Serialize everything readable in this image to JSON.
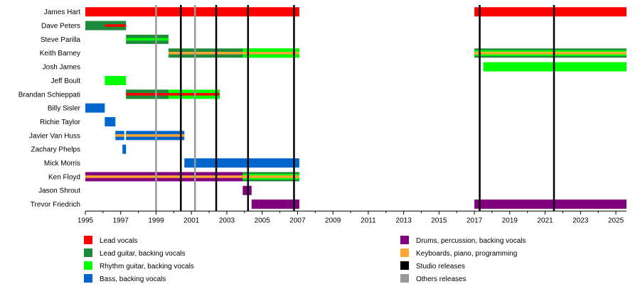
{
  "chart_data": {
    "type": "timeline",
    "xlim": [
      1995,
      2025.6
    ],
    "x_ticks": [
      1995,
      1997,
      1999,
      2001,
      2003,
      2005,
      2007,
      2009,
      2011,
      2013,
      2015,
      2017,
      2019,
      2021,
      2023,
      2025
    ],
    "colors": {
      "lead_vocals": "#ff0000",
      "lead_guitar": "#1e8b3c",
      "rhythm_guitar": "#00ff00",
      "bass": "#0066cc",
      "drums": "#800080",
      "keyboards": "#ffa533",
      "studio": "#000000",
      "others": "#999999"
    },
    "members": [
      {
        "name": "James Hart",
        "bars": [
          {
            "start": 1995.0,
            "end": 2007.1,
            "role": "lead_vocals"
          },
          {
            "start": 2017.0,
            "end": 2025.6,
            "role": "lead_vocals"
          }
        ]
      },
      {
        "name": "Dave Peters",
        "bars": [
          {
            "start": 1995.0,
            "end": 1997.3,
            "role": "lead_guitar",
            "inner": "rhythm_guitar",
            "inner_end": 1996.1
          },
          {
            "start": 1995.0,
            "end": 1997.3,
            "role": "lead_guitar",
            "inner": "lead_vocals",
            "inner_start": 1996.1
          }
        ]
      },
      {
        "name": "Steve Parilla",
        "bars": [
          {
            "start": 1997.3,
            "end": 1999.7,
            "role": "lead_guitar",
            "inner": "rhythm_guitar"
          }
        ]
      },
      {
        "name": "Keith Barney",
        "bars": [
          {
            "start": 1999.7,
            "end": 2007.1,
            "role": "lead_guitar",
            "inner": "keyboards",
            "inner_end": 2003.9
          },
          {
            "start": 2003.9,
            "end": 2007.1,
            "role": "rhythm_guitar",
            "inner": "keyboards"
          },
          {
            "start": 2017.0,
            "end": 2025.6,
            "role": "lead_guitar",
            "inner": "keyboards",
            "mid": "rhythm_guitar"
          }
        ]
      },
      {
        "name": "Josh James",
        "bars": [
          {
            "start": 2017.5,
            "end": 2025.6,
            "role": "rhythm_guitar"
          }
        ]
      },
      {
        "name": "Jeff Boult",
        "bars": [
          {
            "start": 1996.1,
            "end": 1997.3,
            "role": "rhythm_guitar"
          }
        ]
      },
      {
        "name": "Brandan Schieppati",
        "bars": [
          {
            "start": 1997.3,
            "end": 2002.6,
            "role": "rhythm_guitar",
            "inner": "lead_vocals"
          },
          {
            "start": 1997.3,
            "end": 1999.7,
            "role": "lead_guitar",
            "inner": "lead_vocals"
          }
        ]
      },
      {
        "name": "Billy Sisler",
        "bars": [
          {
            "start": 1995.0,
            "end": 1996.1,
            "role": "bass"
          }
        ]
      },
      {
        "name": "Richie Taylor",
        "bars": [
          {
            "start": 1996.1,
            "end": 1996.7,
            "role": "bass"
          }
        ]
      },
      {
        "name": "Javier Van Huss",
        "bars": [
          {
            "start": 1996.7,
            "end": 1997.2,
            "role": "bass",
            "inner": "keyboards"
          },
          {
            "start": 1997.3,
            "end": 2000.6,
            "role": "bass",
            "inner": "keyboards"
          }
        ]
      },
      {
        "name": "Zachary Phelps",
        "bars": [
          {
            "start": 1997.1,
            "end": 1997.3,
            "role": "bass"
          }
        ]
      },
      {
        "name": "Mick Morris",
        "bars": [
          {
            "start": 2000.6,
            "end": 2007.1,
            "role": "bass"
          }
        ]
      },
      {
        "name": "Ken Floyd",
        "bars": [
          {
            "start": 1995.0,
            "end": 2003.9,
            "role": "drums",
            "inner": "keyboards"
          },
          {
            "start": 2003.9,
            "end": 2007.1,
            "role": "lead_guitar",
            "inner": "keyboards",
            "mid": "rhythm_guitar"
          }
        ]
      },
      {
        "name": "Jason Shrout",
        "bars": [
          {
            "start": 2003.9,
            "end": 2004.4,
            "role": "drums"
          }
        ]
      },
      {
        "name": "Trevor Friedrich",
        "bars": [
          {
            "start": 2004.4,
            "end": 2007.1,
            "role": "drums"
          },
          {
            "start": 2017.0,
            "end": 2025.6,
            "role": "drums"
          }
        ]
      }
    ],
    "studio_releases": [
      2000.4,
      2002.4,
      2004.2,
      2006.8,
      2017.3,
      2021.5
    ],
    "other_releases": [
      1999.0,
      2001.2
    ],
    "legend": [
      {
        "label": "Lead vocals",
        "role": "lead_vocals"
      },
      {
        "label": "Lead guitar, backing vocals",
        "role": "lead_guitar"
      },
      {
        "label": "Rhythm guitar, backing vocals",
        "role": "rhythm_guitar"
      },
      {
        "label": "Bass, backing vocals",
        "role": "bass"
      },
      {
        "label": "Drums, percussion, backing vocals",
        "role": "drums"
      },
      {
        "label": "Keyboards, piano, programming",
        "role": "keyboards"
      },
      {
        "label": "Studio releases",
        "role": "studio"
      },
      {
        "label": "Others releases",
        "role": "others"
      }
    ]
  }
}
